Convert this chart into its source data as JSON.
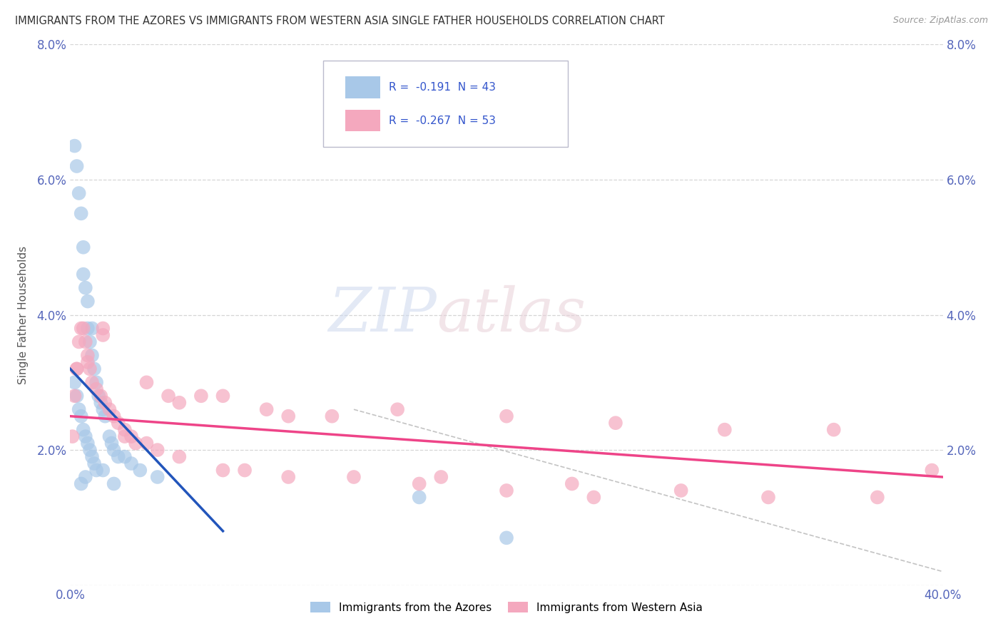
{
  "title": "IMMIGRANTS FROM THE AZORES VS IMMIGRANTS FROM WESTERN ASIA SINGLE FATHER HOUSEHOLDS CORRELATION CHART",
  "source": "Source: ZipAtlas.com",
  "ylabel": "Single Father Households",
  "xlim": [
    0.0,
    0.4
  ],
  "ylim": [
    0.0,
    0.08
  ],
  "xticks": [
    0.0,
    0.05,
    0.1,
    0.15,
    0.2,
    0.25,
    0.3,
    0.35,
    0.4
  ],
  "yticks": [
    0.0,
    0.02,
    0.04,
    0.06,
    0.08
  ],
  "legend_label1": "Immigrants from the Azores",
  "legend_label2": "Immigrants from Western Asia",
  "R1": -0.191,
  "N1": 43,
  "R2": -0.267,
  "N2": 53,
  "color1": "#a8c8e8",
  "color2": "#f4a8be",
  "trendline1_color": "#2255bb",
  "trendline2_color": "#ee4488",
  "background_color": "#ffffff",
  "grid_color": "#cccccc",
  "tick_color": "#5566bb",
  "azores_x": [
    0.002,
    0.003,
    0.004,
    0.005,
    0.006,
    0.006,
    0.007,
    0.008,
    0.008,
    0.009,
    0.01,
    0.01,
    0.011,
    0.012,
    0.013,
    0.014,
    0.015,
    0.016,
    0.018,
    0.019,
    0.02,
    0.022,
    0.025,
    0.028,
    0.032,
    0.04,
    0.002,
    0.003,
    0.004,
    0.005,
    0.006,
    0.007,
    0.008,
    0.009,
    0.01,
    0.011,
    0.012,
    0.16,
    0.2,
    0.005,
    0.007,
    0.015,
    0.02
  ],
  "azores_y": [
    0.065,
    0.062,
    0.058,
    0.055,
    0.05,
    0.046,
    0.044,
    0.042,
    0.038,
    0.036,
    0.034,
    0.038,
    0.032,
    0.03,
    0.028,
    0.027,
    0.026,
    0.025,
    0.022,
    0.021,
    0.02,
    0.019,
    0.019,
    0.018,
    0.017,
    0.016,
    0.03,
    0.028,
    0.026,
    0.025,
    0.023,
    0.022,
    0.021,
    0.02,
    0.019,
    0.018,
    0.017,
    0.013,
    0.007,
    0.015,
    0.016,
    0.017,
    0.015
  ],
  "western_asia_x": [
    0.001,
    0.002,
    0.003,
    0.004,
    0.005,
    0.006,
    0.007,
    0.008,
    0.009,
    0.01,
    0.012,
    0.014,
    0.015,
    0.016,
    0.018,
    0.02,
    0.022,
    0.025,
    0.028,
    0.03,
    0.035,
    0.04,
    0.045,
    0.05,
    0.06,
    0.07,
    0.08,
    0.09,
    0.1,
    0.12,
    0.15,
    0.17,
    0.2,
    0.23,
    0.25,
    0.28,
    0.3,
    0.32,
    0.35,
    0.37,
    0.395,
    0.015,
    0.025,
    0.035,
    0.05,
    0.07,
    0.1,
    0.13,
    0.16,
    0.2,
    0.24,
    0.003,
    0.008
  ],
  "western_asia_y": [
    0.022,
    0.028,
    0.032,
    0.036,
    0.038,
    0.038,
    0.036,
    0.034,
    0.032,
    0.03,
    0.029,
    0.028,
    0.038,
    0.027,
    0.026,
    0.025,
    0.024,
    0.023,
    0.022,
    0.021,
    0.03,
    0.02,
    0.028,
    0.027,
    0.028,
    0.017,
    0.017,
    0.026,
    0.025,
    0.025,
    0.026,
    0.016,
    0.025,
    0.015,
    0.024,
    0.014,
    0.023,
    0.013,
    0.023,
    0.013,
    0.017,
    0.037,
    0.022,
    0.021,
    0.019,
    0.028,
    0.016,
    0.016,
    0.015,
    0.014,
    0.013,
    0.032,
    0.033
  ],
  "trendline1_x0": 0.0,
  "trendline1_x1": 0.07,
  "trendline1_y0": 0.032,
  "trendline1_y1": 0.008,
  "trendline2_x0": 0.0,
  "trendline2_x1": 0.4,
  "trendline2_y0": 0.025,
  "trendline2_y1": 0.016,
  "dashline_x0": 0.13,
  "dashline_x1": 0.4,
  "dashline_y0": 0.026,
  "dashline_y1": 0.002
}
